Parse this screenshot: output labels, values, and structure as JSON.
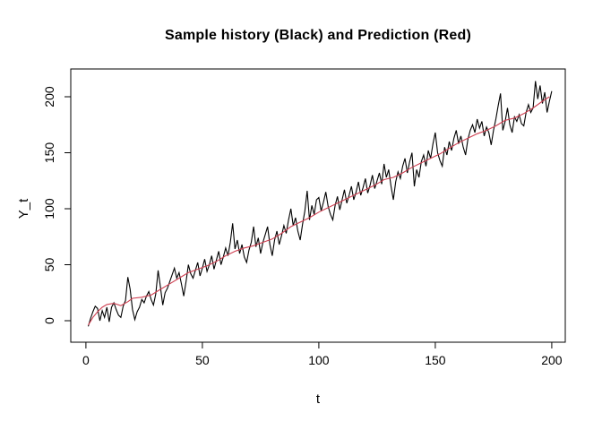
{
  "title": "Sample history (Black) and Prediction (Red)",
  "colors": {
    "background": "#ffffff",
    "axis": "#000000",
    "history_line": "#000000",
    "prediction_line": "#cf3f51"
  },
  "chart_data": {
    "type": "line",
    "title": "Sample history (Black) and Prediction (Red)",
    "xlabel": "t",
    "ylabel": "Y_t",
    "x_ticks": [
      0,
      50,
      100,
      150,
      200
    ],
    "y_ticks": [
      0,
      50,
      100,
      150,
      200
    ],
    "xlim": [
      -6.5,
      205.8
    ],
    "ylim": [
      -19.2,
      224.8
    ],
    "grid": false,
    "legend_position": "none",
    "box": true,
    "series": [
      {
        "name": "Sample history",
        "color": "#000000",
        "x_start": 1,
        "x_step": 1,
        "values": [
          -5,
          2,
          8,
          13,
          11,
          0,
          9,
          3,
          12,
          -1,
          12,
          16,
          10,
          5,
          3,
          13,
          18,
          39,
          28,
          10,
          1,
          8,
          12,
          19,
          16,
          22,
          26,
          19,
          14,
          24,
          45,
          30,
          14,
          25,
          29,
          35,
          41,
          47,
          38,
          43,
          33,
          22,
          35,
          50,
          42,
          38,
          45,
          52,
          40,
          47,
          55,
          44,
          50,
          58,
          46,
          54,
          62,
          50,
          57,
          65,
          58,
          70,
          87,
          64,
          72,
          60,
          68,
          57,
          52,
          63,
          70,
          84,
          66,
          74,
          60,
          70,
          77,
          84,
          68,
          58,
          72,
          80,
          68,
          76,
          85,
          78,
          90,
          100,
          85,
          92,
          80,
          72,
          86,
          98,
          116,
          90,
          103,
          95,
          108,
          110,
          98,
          106,
          115,
          102,
          95,
          90,
          103,
          111,
          99,
          108,
          117,
          105,
          112,
          120,
          108,
          115,
          124,
          112,
          119,
          127,
          114,
          121,
          130,
          118,
          125,
          132,
          122,
          140,
          128,
          135,
          120,
          108,
          124,
          133,
          127,
          138,
          145,
          132,
          142,
          150,
          120,
          135,
          128,
          142,
          148,
          138,
          152,
          145,
          158,
          168,
          150,
          143,
          138,
          155,
          148,
          160,
          152,
          163,
          170,
          158,
          165,
          155,
          148,
          162,
          170,
          175,
          168,
          180,
          172,
          178,
          165,
          173,
          168,
          157,
          170,
          180,
          192,
          203,
          170,
          178,
          190,
          175,
          168,
          182,
          178,
          184,
          176,
          174,
          186,
          193,
          186,
          190,
          214,
          198,
          210,
          194,
          204,
          186,
          196,
          205
        ]
      },
      {
        "name": "Prediction",
        "color": "#cf3f51",
        "x": [
          1,
          3,
          5,
          7,
          9,
          12,
          15,
          18,
          20,
          24,
          28,
          32,
          36,
          40,
          44,
          48,
          52,
          56,
          60,
          64,
          68,
          72,
          76,
          80,
          84,
          88,
          92,
          96,
          100,
          104,
          108,
          112,
          116,
          120,
          124,
          128,
          132,
          136,
          140,
          144,
          148,
          152,
          156,
          160,
          164,
          168,
          172,
          176,
          180,
          184,
          188,
          192,
          196,
          199
        ],
        "values": [
          -4,
          3,
          8,
          12,
          14.5,
          15.5,
          13.5,
          17,
          20,
          21,
          23,
          28,
          33,
          38,
          43,
          46,
          49,
          53,
          58,
          62,
          65,
          67,
          70,
          73,
          78,
          84,
          88,
          92,
          97,
          101,
          105,
          109,
          113,
          117,
          121,
          126,
          128,
          132,
          137,
          141,
          145,
          149,
          154,
          159,
          163,
          167,
          170,
          174,
          179,
          181,
          185,
          190,
          196,
          200
        ]
      }
    ]
  }
}
